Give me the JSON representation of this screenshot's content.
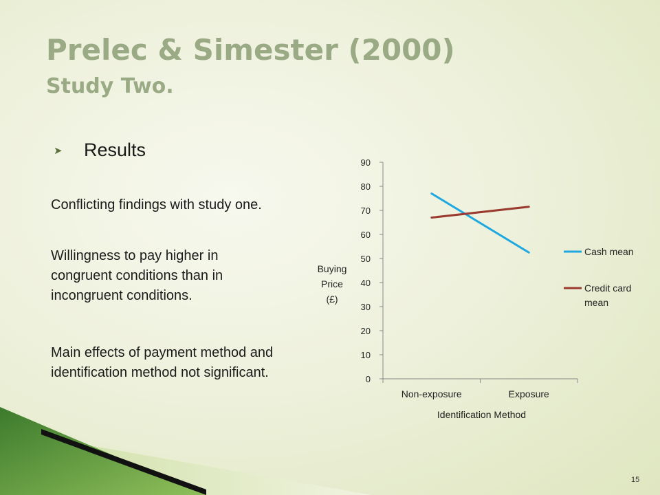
{
  "slide": {
    "title": "Prelec & Simester (2000)",
    "subtitle": "Study Two.",
    "bullet": "Results",
    "paragraphs": [
      "Conflicting findings with study one.",
      "Willingness to pay higher in congruent conditions than in incongruent conditions.",
      "Main effects of payment method and identification method not significant."
    ],
    "page_number": "15",
    "bullet_icon": "arrowhead-bullet-icon"
  },
  "colors": {
    "title": "#9aaa84",
    "cash": "#1fa8e0",
    "credit": "#9b3a2e"
  },
  "chart_data": {
    "type": "line",
    "categories": [
      "Non-exposure",
      "Exposure"
    ],
    "series": [
      {
        "name": "Cash mean",
        "values": [
          77,
          52.5
        ],
        "color": "#1fa8e0"
      },
      {
        "name": "Credit card mean",
        "values": [
          67,
          71.5
        ],
        "color": "#9b3a2e"
      }
    ],
    "xlabel": "Identification Method",
    "ylabel": "Buying Price (£)",
    "ylim": [
      0,
      90
    ],
    "yticks": [
      "0",
      "10",
      "20",
      "30",
      "40",
      "50",
      "60",
      "70",
      "80",
      "90"
    ],
    "legend": "right",
    "grid": false
  }
}
